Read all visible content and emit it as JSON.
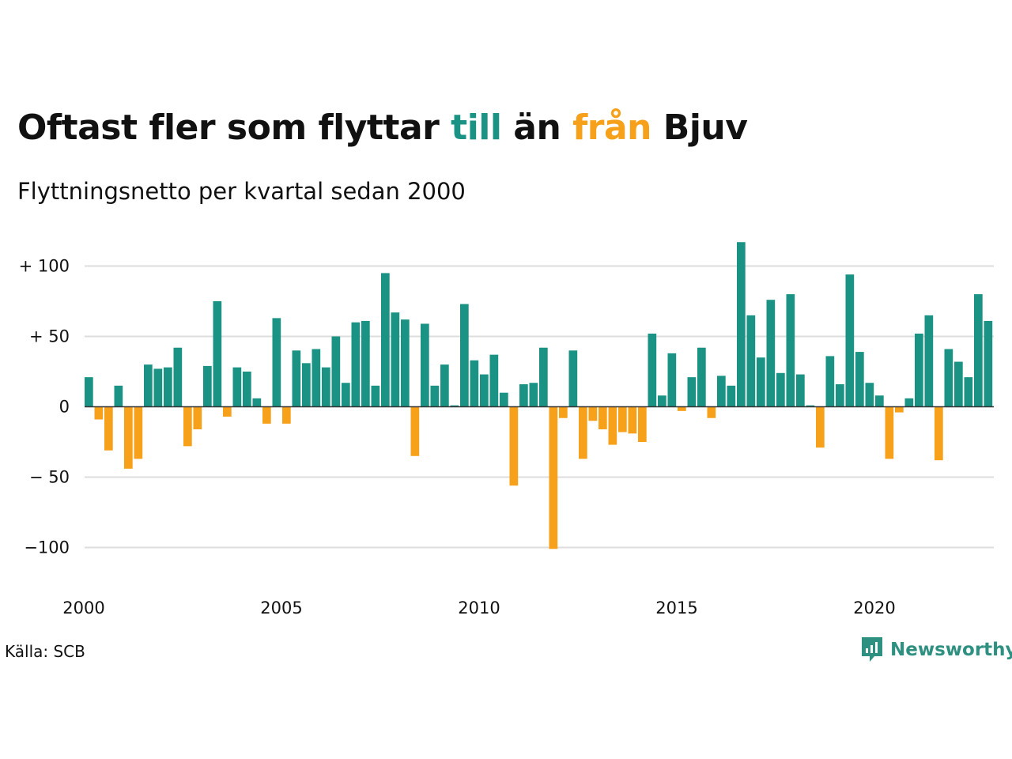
{
  "header": {
    "title_part1": "Oftast fler som flyttar ",
    "title_till": "till",
    "title_part2": " än ",
    "title_fran": "från",
    "title_part3": " Bjuv",
    "subtitle": "Flyttningsnetto per kvartal sedan 2000"
  },
  "footer": {
    "source": "Källa: SCB",
    "brand": "Newsworthy"
  },
  "colors": {
    "positive": "#1a9384",
    "negative": "#f7a11a",
    "grid": "#dddddd",
    "brand": "#2e9080"
  },
  "chart_data": {
    "type": "bar",
    "title": "Oftast fler som flyttar till än från Bjuv",
    "subtitle": "Flyttningsnetto per kvartal sedan 2000",
    "xlabel": "",
    "ylabel": "",
    "ylim": [
      -125,
      120
    ],
    "yticks": [
      {
        "value": 100,
        "label": "+ 100"
      },
      {
        "value": 50,
        "label": "+  50"
      },
      {
        "value": 0,
        "label": "0"
      },
      {
        "value": -50,
        "label": "− 50"
      },
      {
        "value": -100,
        "label": "−100"
      }
    ],
    "xticks": [
      {
        "year": 2000,
        "label": "2000"
      },
      {
        "year": 2005,
        "label": "2005"
      },
      {
        "year": 2010,
        "label": "2010"
      },
      {
        "year": 2015,
        "label": "2015"
      },
      {
        "year": 2020,
        "label": "2020"
      }
    ],
    "start_year": 2000,
    "period": "quarter",
    "grid": true,
    "values": [
      21,
      -9,
      -31,
      15,
      -44,
      -37,
      30,
      27,
      28,
      42,
      -28,
      -16,
      29,
      75,
      -7,
      28,
      25,
      6,
      -12,
      63,
      -12,
      40,
      31,
      41,
      28,
      50,
      17,
      60,
      61,
      15,
      95,
      67,
      62,
      -35,
      59,
      15,
      30,
      1,
      73,
      33,
      23,
      37,
      10,
      -56,
      16,
      17,
      42,
      -101,
      -8,
      40,
      -37,
      -10,
      -16,
      -27,
      -18,
      -19,
      -25,
      52,
      8,
      38,
      -3,
      21,
      42,
      -8,
      22,
      15,
      117,
      65,
      35,
      76,
      24,
      80,
      23,
      1,
      -29,
      36,
      16,
      94,
      39,
      17,
      8,
      -37,
      -4,
      6,
      52,
      65,
      -38,
      41,
      32,
      21,
      80,
      61
    ]
  }
}
